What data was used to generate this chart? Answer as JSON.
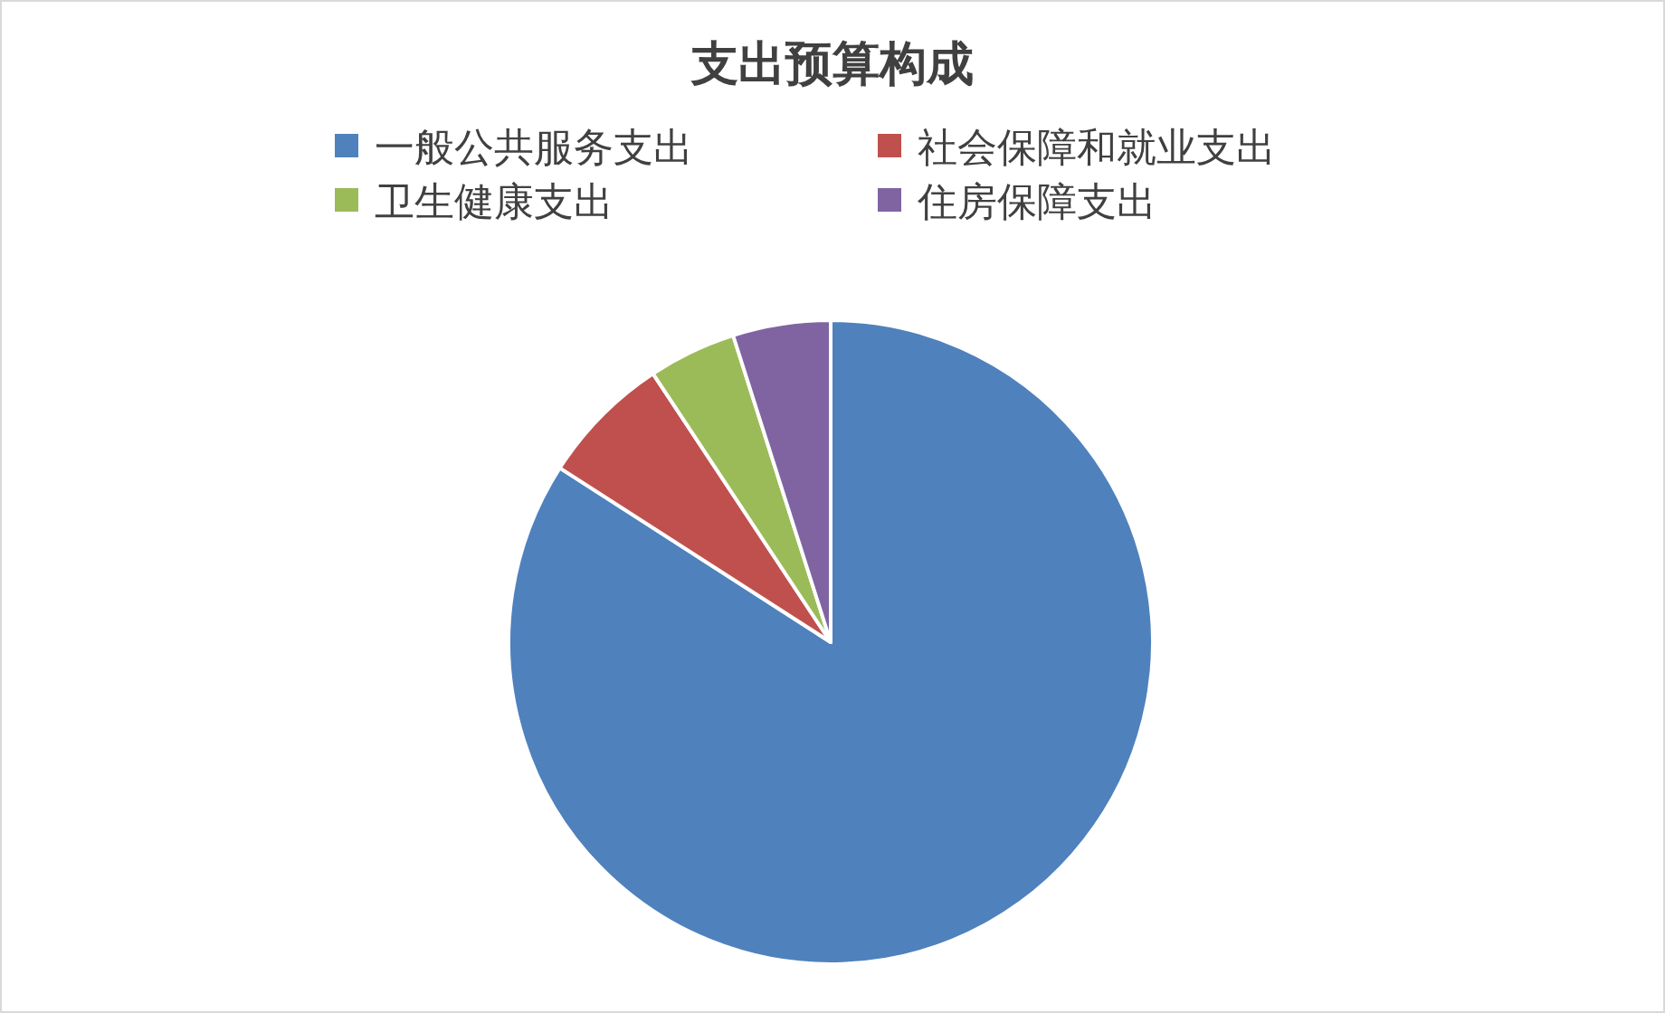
{
  "chart_data": {
    "type": "pie",
    "title": "支出预算构成",
    "categories": [
      "一般公共服务支出",
      "社会保障和就业支出",
      "卫生健康支出",
      "住房保障支出"
    ],
    "values": [
      84.1,
      6.6,
      4.4,
      4.9
    ],
    "colors": [
      "#4f81bd",
      "#c0504d",
      "#9bbb59",
      "#8064a2"
    ],
    "legend": "top"
  }
}
